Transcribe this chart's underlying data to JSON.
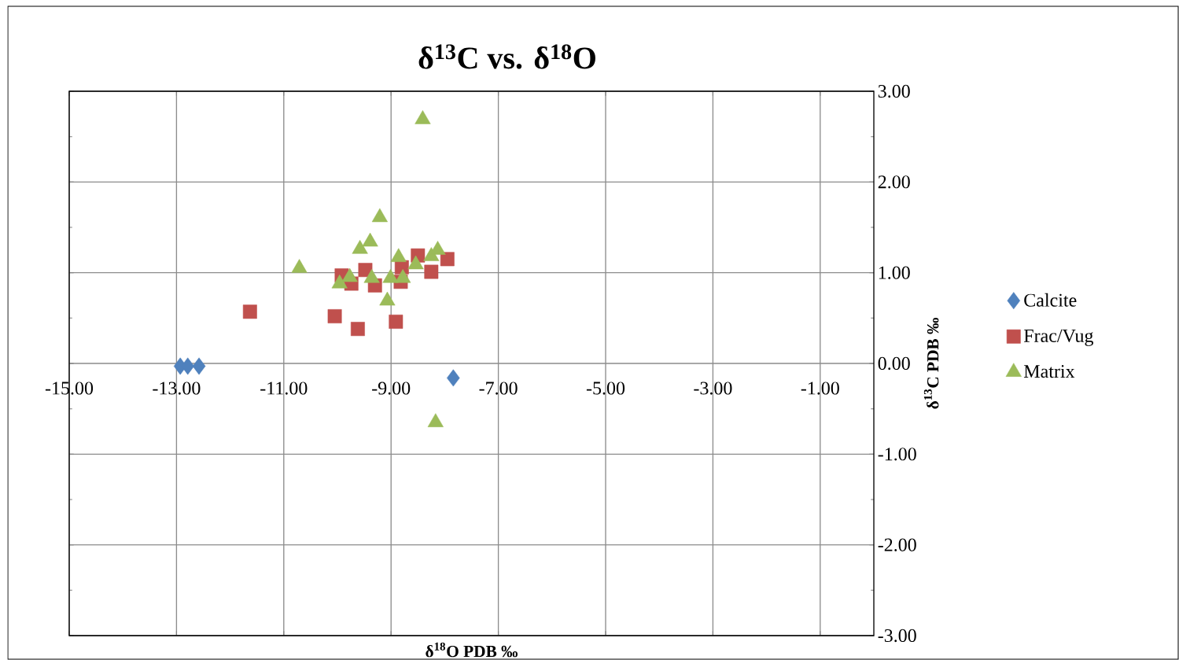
{
  "chart_data": {
    "type": "scatter",
    "title": "δ$^{13}$C vs. δ$^{18}$O",
    "xlabel": "δ$^{18}$O PDB ‰",
    "ylabel": "δ$^{13}$C PDB ‰",
    "xlim": [
      -15,
      0
    ],
    "ylim": [
      -3,
      3
    ],
    "xticks": [
      {
        "value": -15,
        "label": "-15.00"
      },
      {
        "value": -13,
        "label": "-13.00"
      },
      {
        "value": -11,
        "label": "-11.00"
      },
      {
        "value": -9,
        "label": "-9.00"
      },
      {
        "value": -7,
        "label": "-7.00"
      },
      {
        "value": -5,
        "label": "-5.00"
      },
      {
        "value": -3,
        "label": "-3.00"
      },
      {
        "value": -1,
        "label": "-1.00"
      }
    ],
    "yticks": [
      {
        "value": -3,
        "label": "-3.00"
      },
      {
        "value": -2,
        "label": "-2.00"
      },
      {
        "value": -1,
        "label": "-1.00"
      },
      {
        "value": 0,
        "label": "0.00"
      },
      {
        "value": 1,
        "label": "1.00"
      },
      {
        "value": 2,
        "label": "2.00"
      },
      {
        "value": 3,
        "label": "3.00"
      }
    ],
    "grid": true,
    "legend": "right",
    "series": [
      {
        "name": "Calcite",
        "color": "#4f81bd",
        "marker": "diamond",
        "x": [
          -12.93,
          -12.79,
          -12.58,
          -7.84
        ],
        "values": [
          -0.03,
          -0.03,
          -0.03,
          -0.16
        ]
      },
      {
        "name": "Frac/Vug",
        "color": "#c0504d",
        "marker": "square",
        "x": [
          -11.63,
          -10.05,
          -9.62,
          -8.91,
          -9.92,
          -9.74,
          -9.48,
          -9.36,
          -9.3,
          -8.8,
          -8.82,
          -8.5,
          -8.41,
          -8.25,
          -7.95
        ],
        "values": [
          0.57,
          0.52,
          0.38,
          0.46,
          0.97,
          0.88,
          1.03,
          null,
          0.86,
          1.06,
          0.9,
          1.19,
          null,
          1.01,
          1.15
        ]
      },
      {
        "name": "Matrix",
        "color": "#9bbb59",
        "marker": "triangle",
        "x": [
          -8.41,
          -10.71,
          -9.21,
          -9.39,
          -9.58,
          -8.86,
          -8.25,
          -8.13,
          -8.54,
          -9.77,
          -9.96,
          -9.42,
          -9.36,
          -9.01,
          -8.78,
          -9.07,
          -8.17
        ],
        "values": [
          2.69,
          1.05,
          1.61,
          1.34,
          1.26,
          1.17,
          1.18,
          1.25,
          1.09,
          0.95,
          0.88,
          null,
          0.94,
          0.94,
          0.94,
          0.69,
          -0.65
        ]
      }
    ]
  }
}
